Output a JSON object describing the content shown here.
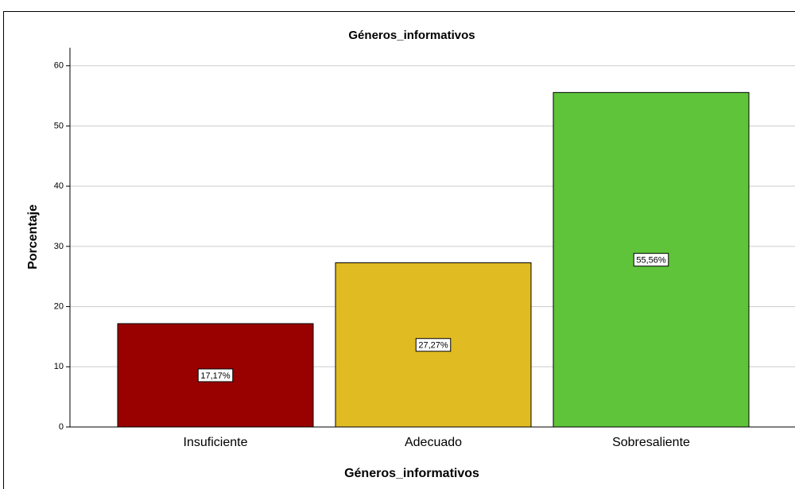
{
  "chart_data": {
    "type": "bar",
    "title": "Géneros_informativos",
    "x_label": "Géneros_informativos",
    "y_label": "Porcentaje",
    "categories": [
      "Insuficiente",
      "Adecuado",
      "Sobresaliente"
    ],
    "values": [
      17.17,
      27.27,
      55.56
    ],
    "value_labels": [
      "17,17%",
      "27,27%",
      "55,56%"
    ],
    "colors": [
      "#990000",
      "#e0bb22",
      "#5fc43a"
    ],
    "ylim": [
      0,
      63
    ],
    "yticks": [
      0,
      10,
      20,
      30,
      40,
      50,
      60
    ],
    "grid": true
  }
}
